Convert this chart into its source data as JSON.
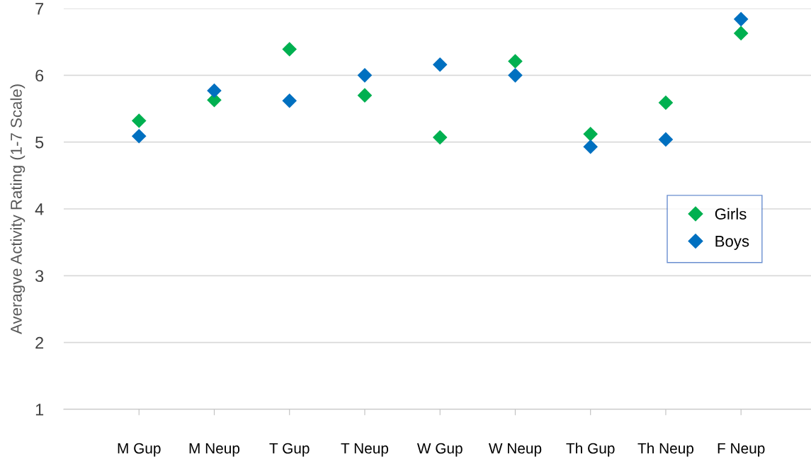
{
  "chart_data": {
    "type": "scatter",
    "ylabel": "Averagve Activity Rating (1-7 Scale)",
    "categories": [
      "M Gup",
      "M Neup",
      "T Gup",
      "T Neup",
      "W Gup",
      "W Neup",
      "Th Gup",
      "Th Neup",
      "F Neup"
    ],
    "series": [
      {
        "name": "Girls",
        "color": "#00b050",
        "values": [
          5.32,
          5.63,
          6.39,
          5.7,
          5.07,
          6.21,
          5.12,
          5.59,
          6.63
        ]
      },
      {
        "name": "Boys",
        "color": "#0070c0",
        "values": [
          5.09,
          5.77,
          5.62,
          6.0,
          6.16,
          6.0,
          4.93,
          5.04,
          6.84
        ]
      }
    ],
    "ylim": [
      1,
      7
    ],
    "yticks": [
      1,
      2,
      3,
      4,
      5,
      6,
      7
    ],
    "grid": "y",
    "legend": "right",
    "marker": "diamond"
  }
}
